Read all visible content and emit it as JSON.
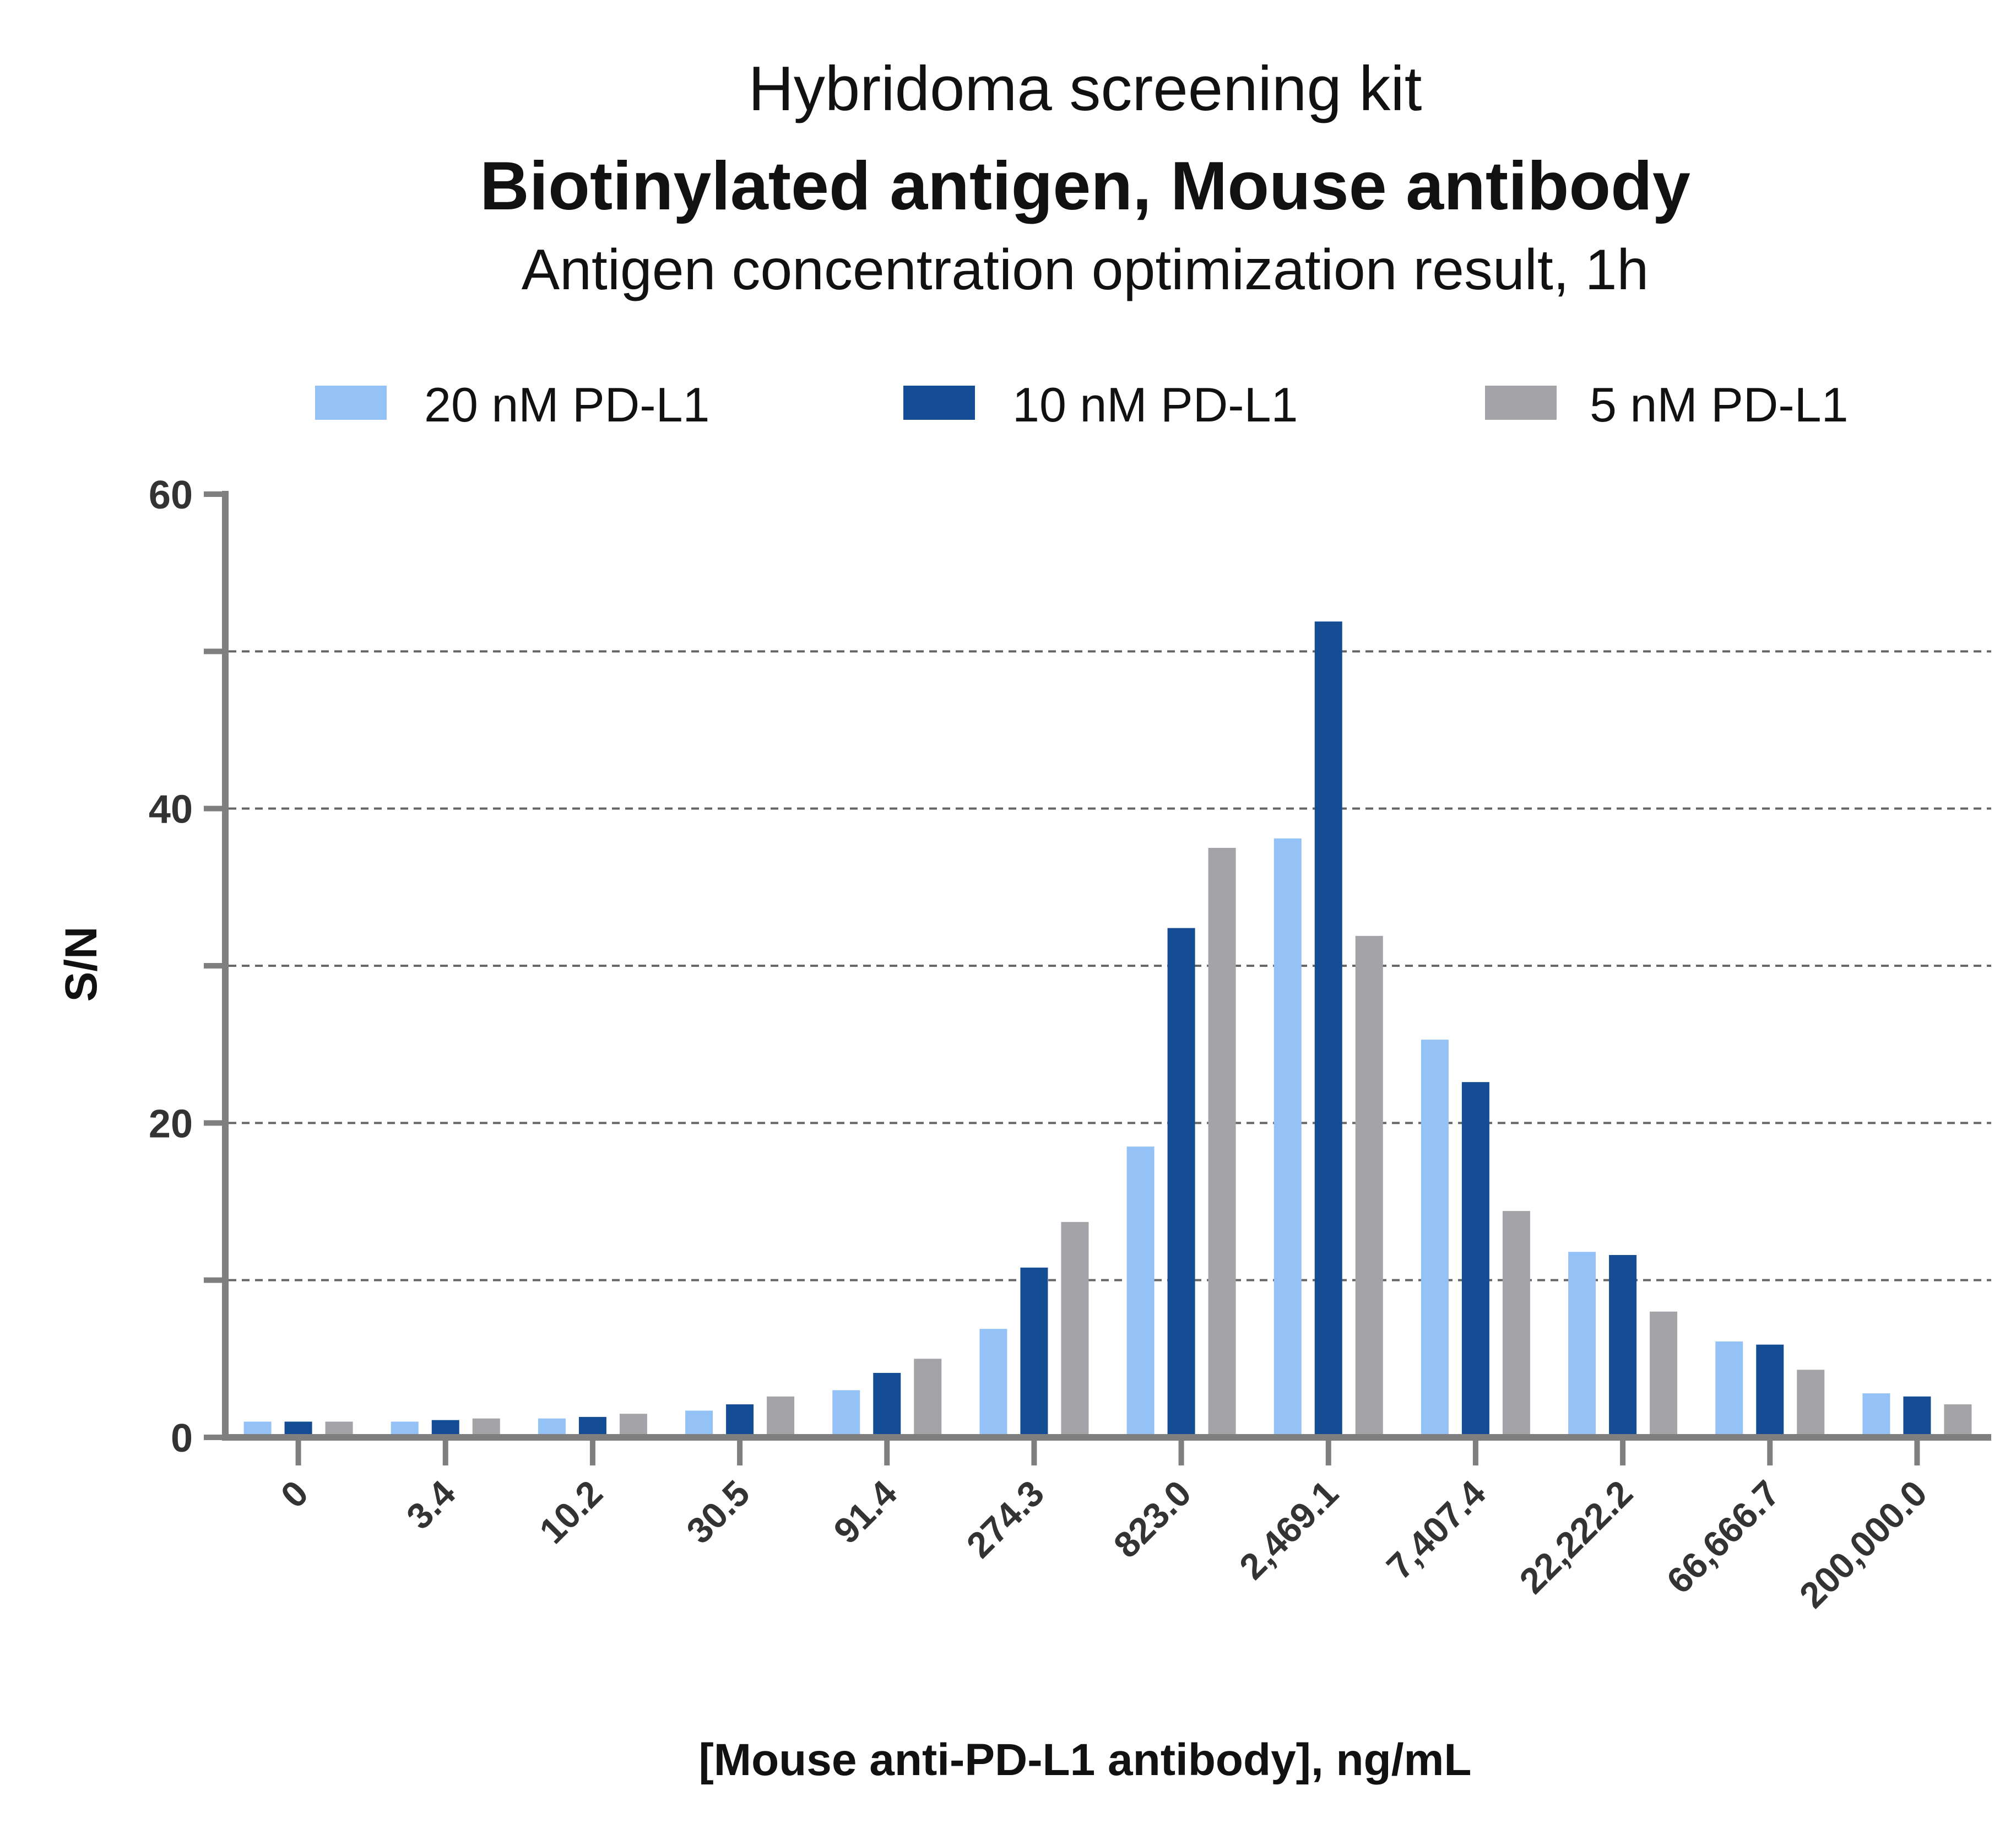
{
  "chart_data": {
    "type": "bar",
    "title": "Hybridoma screening kit",
    "subtitle": "Biotinylated antigen, Mouse antibody",
    "subtitle2": "Antigen concentration optimization result, 1h",
    "xlabel": "[Mouse anti-PD-L1 antibody], ng/mL",
    "ylabel": "S/N",
    "ylim": [
      0,
      60
    ],
    "yticks": [
      0,
      20,
      40,
      60
    ],
    "ytick_labels": [
      "0",
      "20",
      "40",
      "60"
    ],
    "gridlines": [
      10,
      20,
      30,
      40,
      50
    ],
    "grid": true,
    "legend_position": "top",
    "categories": [
      "0",
      "3.4",
      "10.2",
      "30.5",
      "91.4",
      "274.3",
      "823.0",
      "2,469.1",
      "7,407.4",
      "22,222.2",
      "66,666.7",
      "200,000.0"
    ],
    "series": [
      {
        "name": "20 nM  PD-L1",
        "color": "#94c2f7",
        "values": [
          1.0,
          1.0,
          1.2,
          1.7,
          3.0,
          6.9,
          18.5,
          38.1,
          25.3,
          11.8,
          6.1,
          2.8
        ]
      },
      {
        "name": "10 nM  PD-L1",
        "color": "#154d95",
        "values": [
          1.0,
          1.1,
          1.3,
          2.1,
          4.1,
          10.8,
          32.4,
          51.9,
          22.6,
          11.6,
          5.9,
          2.6
        ]
      },
      {
        "name": "5 nM  PD-L1",
        "color": "#a3a3a8",
        "values": [
          1.0,
          1.2,
          1.5,
          2.6,
          5.0,
          13.7,
          37.5,
          31.9,
          14.4,
          8.0,
          4.3,
          2.1
        ]
      }
    ]
  }
}
